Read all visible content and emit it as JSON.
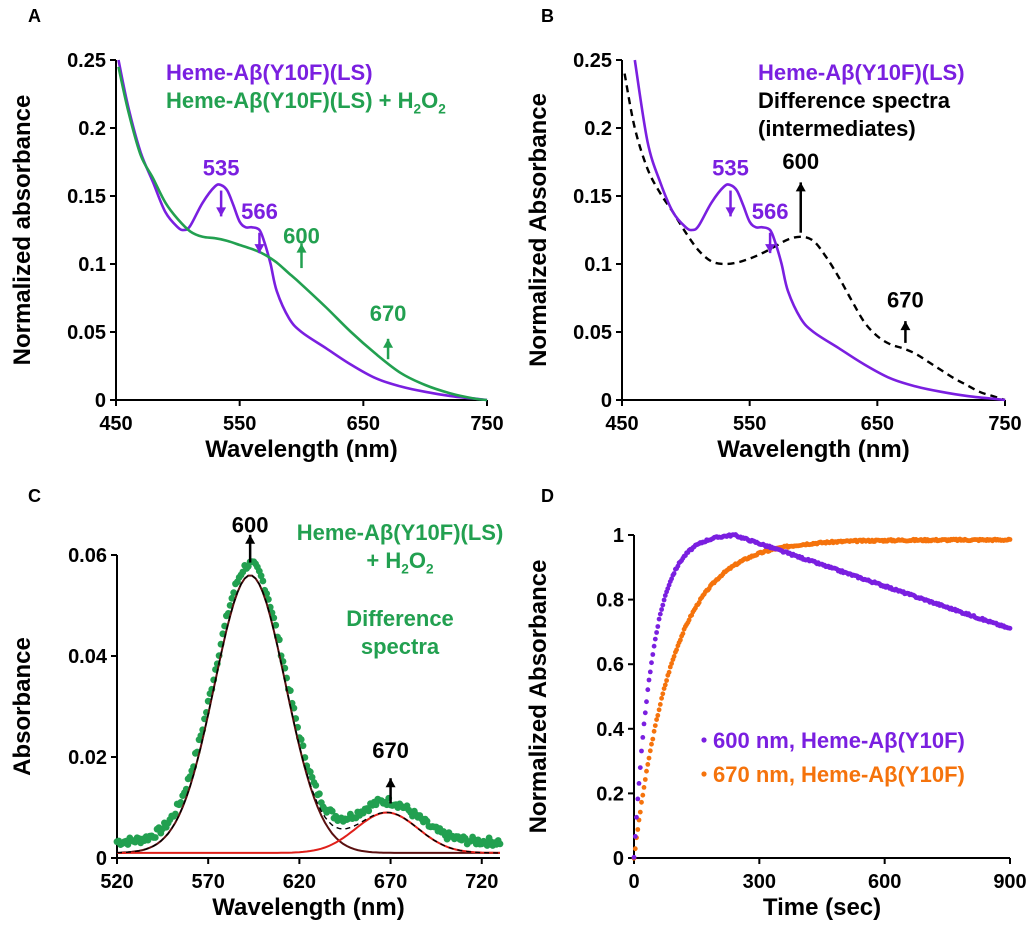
{
  "colors": {
    "purple": "#7a1fe0",
    "green": "#22a050",
    "black": "#000000",
    "orange": "#f5730c",
    "red": "#e0201a",
    "dark_red": "#5a1010"
  },
  "chart_data": [
    {
      "panel": "A",
      "type": "line",
      "xlabel": "Wavelength (nm)",
      "ylabel": "Normalized absorbance",
      "xlim": [
        450,
        750
      ],
      "ylim": [
        0,
        0.25
      ],
      "x_ticks": [
        "450",
        "550",
        "650",
        "750"
      ],
      "y_ticks": [
        "0",
        "0.05",
        "0.1",
        "0.15",
        "0.2",
        "0.25"
      ],
      "legend": [
        {
          "text": "Heme-Aβ(Y10F)(LS)",
          "color": "#7a1fe0"
        },
        {
          "text": "Heme-Aβ(Y10F)(LS) + H",
          "sub": "2",
          "text2": "O",
          "sub2": "2",
          "color": "#22a050"
        }
      ],
      "series": [
        {
          "name": "Heme-Aβ(Y10F)(LS)",
          "color": "#7a1fe0",
          "x": [
            452,
            460,
            470,
            480,
            490,
            500,
            505,
            510,
            520,
            530,
            535,
            540,
            545,
            550,
            555,
            560,
            566,
            570,
            575,
            580,
            590,
            600,
            620,
            640,
            660,
            680,
            700,
            720,
            740,
            750
          ],
          "y": [
            0.25,
            0.215,
            0.182,
            0.16,
            0.138,
            0.127,
            0.125,
            0.128,
            0.145,
            0.157,
            0.158,
            0.154,
            0.143,
            0.131,
            0.127,
            0.127,
            0.125,
            0.116,
            0.1,
            0.08,
            0.06,
            0.05,
            0.038,
            0.026,
            0.016,
            0.01,
            0.006,
            0.003,
            0.001,
            0
          ]
        },
        {
          "name": "Heme-Aβ(Y10F)(LS) + H2O2",
          "color": "#22a050",
          "x": [
            452,
            460,
            470,
            480,
            490,
            500,
            510,
            520,
            530,
            540,
            550,
            560,
            570,
            580,
            590,
            600,
            620,
            640,
            660,
            680,
            700,
            720,
            740,
            750
          ],
          "y": [
            0.245,
            0.212,
            0.18,
            0.163,
            0.145,
            0.133,
            0.124,
            0.12,
            0.119,
            0.117,
            0.114,
            0.111,
            0.107,
            0.101,
            0.093,
            0.085,
            0.068,
            0.05,
            0.034,
            0.02,
            0.011,
            0.005,
            0.001,
            0
          ]
        }
      ],
      "annotations": [
        {
          "text": "535",
          "x": 535,
          "y": 0.165,
          "color": "#7a1fe0",
          "arrow": "down",
          "from": 0.154,
          "to": 0.135
        },
        {
          "text": "566",
          "x": 566,
          "y": 0.133,
          "color": "#7a1fe0",
          "arrow": "down",
          "from": 0.123,
          "to": 0.108
        },
        {
          "text": "600",
          "x": 600,
          "y": 0.115,
          "color": "#22a050",
          "arrow": "up",
          "from": 0.097,
          "to": 0.115
        },
        {
          "text": "670",
          "x": 670,
          "y": 0.058,
          "color": "#22a050",
          "arrow": "up",
          "from": 0.03,
          "to": 0.045
        }
      ]
    },
    {
      "panel": "B",
      "type": "line",
      "xlabel": "Wavelength (nm)",
      "ylabel": "Normalized Absorbance",
      "xlim": [
        450,
        750
      ],
      "ylim": [
        0,
        0.25
      ],
      "x_ticks": [
        "450",
        "550",
        "650",
        "750"
      ],
      "y_ticks": [
        "0",
        "0.05",
        "0.1",
        "0.15",
        "0.2",
        "0.25"
      ],
      "legend": [
        {
          "text": "Heme-Aβ(Y10F)(LS)",
          "color": "#7a1fe0"
        },
        {
          "text": "Difference spectra",
          "color": "#000000"
        },
        {
          "text": "(intermediates)",
          "color": "#000000"
        }
      ],
      "series": [
        {
          "name": "Heme-Aβ(Y10F)(LS)",
          "color": "#7a1fe0",
          "x": [
            460,
            470,
            480,
            490,
            500,
            505,
            510,
            520,
            530,
            535,
            540,
            545,
            550,
            555,
            560,
            566,
            570,
            575,
            580,
            590,
            600,
            620,
            640,
            660,
            680,
            700,
            720,
            740,
            750
          ],
          "y": [
            0.25,
            0.19,
            0.16,
            0.138,
            0.127,
            0.125,
            0.128,
            0.145,
            0.157,
            0.158,
            0.154,
            0.143,
            0.131,
            0.127,
            0.127,
            0.125,
            0.116,
            0.1,
            0.08,
            0.06,
            0.05,
            0.038,
            0.026,
            0.016,
            0.01,
            0.006,
            0.003,
            0.001,
            0
          ]
        },
        {
          "name": "Difference spectra (intermediates)",
          "color": "#000000",
          "dashed": true,
          "x": [
            452,
            460,
            470,
            480,
            490,
            500,
            510,
            520,
            530,
            540,
            550,
            560,
            570,
            580,
            590,
            600,
            610,
            620,
            630,
            640,
            650,
            660,
            670,
            680,
            690,
            700,
            710,
            720,
            730,
            740,
            750
          ],
          "y": [
            0.24,
            0.2,
            0.17,
            0.152,
            0.138,
            0.123,
            0.11,
            0.102,
            0.1,
            0.101,
            0.104,
            0.108,
            0.113,
            0.118,
            0.12,
            0.117,
            0.105,
            0.09,
            0.073,
            0.057,
            0.047,
            0.041,
            0.038,
            0.034,
            0.028,
            0.022,
            0.016,
            0.011,
            0.006,
            0.003,
            0
          ]
        }
      ],
      "annotations": [
        {
          "text": "535",
          "x": 535,
          "y": 0.165,
          "color": "#7a1fe0",
          "arrow": "down",
          "from": 0.154,
          "to": 0.135
        },
        {
          "text": "566",
          "x": 566,
          "y": 0.133,
          "color": "#7a1fe0",
          "arrow": "down",
          "from": 0.123,
          "to": 0.108
        },
        {
          "text": "600",
          "x": 590,
          "y": 0.17,
          "color": "#000000",
          "arrow": "up",
          "from": 0.123,
          "to": 0.16
        },
        {
          "text": "670",
          "x": 672,
          "y": 0.068,
          "color": "#000000",
          "arrow": "up",
          "from": 0.042,
          "to": 0.058
        }
      ]
    },
    {
      "panel": "C",
      "type": "scatter",
      "xlabel": "Wavelength (nm)",
      "ylabel": "Absorbance",
      "xlim": [
        520,
        730
      ],
      "ylim": [
        0,
        0.06
      ],
      "x_ticks": [
        "520",
        "570",
        "620",
        "670",
        "720"
      ],
      "y_ticks": [
        "0",
        "0.02",
        "0.04",
        "0.06"
      ],
      "legend": [
        {
          "text": "Heme-Aβ(Y10F)(LS)",
          "color": "#22a050"
        },
        {
          "text": "+ H",
          "sub": "2",
          "text2": "O",
          "sub2": "2",
          "color": "#22a050"
        },
        {
          "text": "Difference",
          "color": "#22a050"
        },
        {
          "text": "spectra",
          "color": "#22a050"
        }
      ],
      "gaussians": [
        {
          "center": 593,
          "amp": 0.055,
          "sigma": 19.5
        },
        {
          "center": 668,
          "amp": 0.008,
          "sigma": 17
        }
      ],
      "baseline": 0.001,
      "annotations": [
        {
          "text": "600",
          "x": 593,
          "y": 0.0645,
          "color": "#000000",
          "arrow": "up",
          "from": 0.0585,
          "to": 0.064
        },
        {
          "text": "670",
          "x": 670,
          "y": 0.0198,
          "color": "#000000",
          "arrow": "up",
          "from": 0.0108,
          "to": 0.0158
        }
      ]
    },
    {
      "panel": "D",
      "type": "scatter",
      "xlabel": "Time (sec)",
      "ylabel": "Normalized Absorbance",
      "xlim": [
        0,
        900
      ],
      "ylim": [
        0,
        1
      ],
      "x_ticks": [
        "0",
        "300",
        "600",
        "900"
      ],
      "y_ticks": [
        "0",
        "0.2",
        "0.4",
        "0.6",
        "0.8",
        "1"
      ],
      "legend": [
        {
          "text": "600 nm, Heme-Aβ(Y10F)",
          "color": "#7a1fe0"
        },
        {
          "text": "670 nm, Heme-Aβ(Y10F)",
          "color": "#f5730c"
        }
      ],
      "series": [
        {
          "name": "600 nm, Heme-Aβ(Y10F)",
          "color": "#7a1fe0",
          "peak_time": 240,
          "rate": 0.022,
          "end_value": 0.71
        },
        {
          "name": "670 nm, Heme-Aβ(Y10F)",
          "color": "#f5730c",
          "rate": 0.0105,
          "end_value": 0.985
        }
      ]
    }
  ],
  "panel_labels": [
    "A",
    "B",
    "C",
    "D"
  ]
}
